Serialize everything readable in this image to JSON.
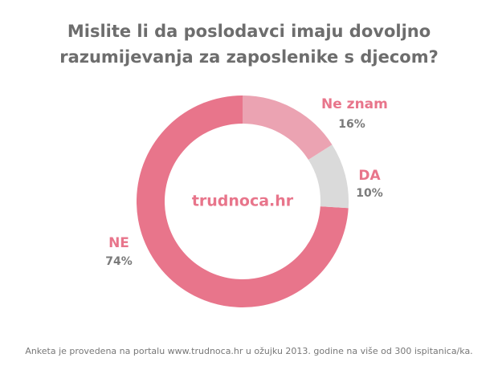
{
  "chart_data": {
    "type": "donut",
    "title": [
      "Mislite li da poslodavci imaju dovoljno",
      "razumijevanja za zaposlenike s djecom?"
    ],
    "center_label": "trudnoca.hr",
    "categories": [
      "Ne znam",
      "DA",
      "NE"
    ],
    "values": [
      16,
      10,
      74
    ],
    "value_labels": [
      "16%",
      "10%",
      "74%"
    ],
    "colors": [
      "#eba3b2",
      "#dadada",
      "#e8758b"
    ],
    "footnote": "Anketa je provedena na portalu www.trudnoca.hr u ožujku 2013. godine na više od 300 ispitanica/ka."
  }
}
